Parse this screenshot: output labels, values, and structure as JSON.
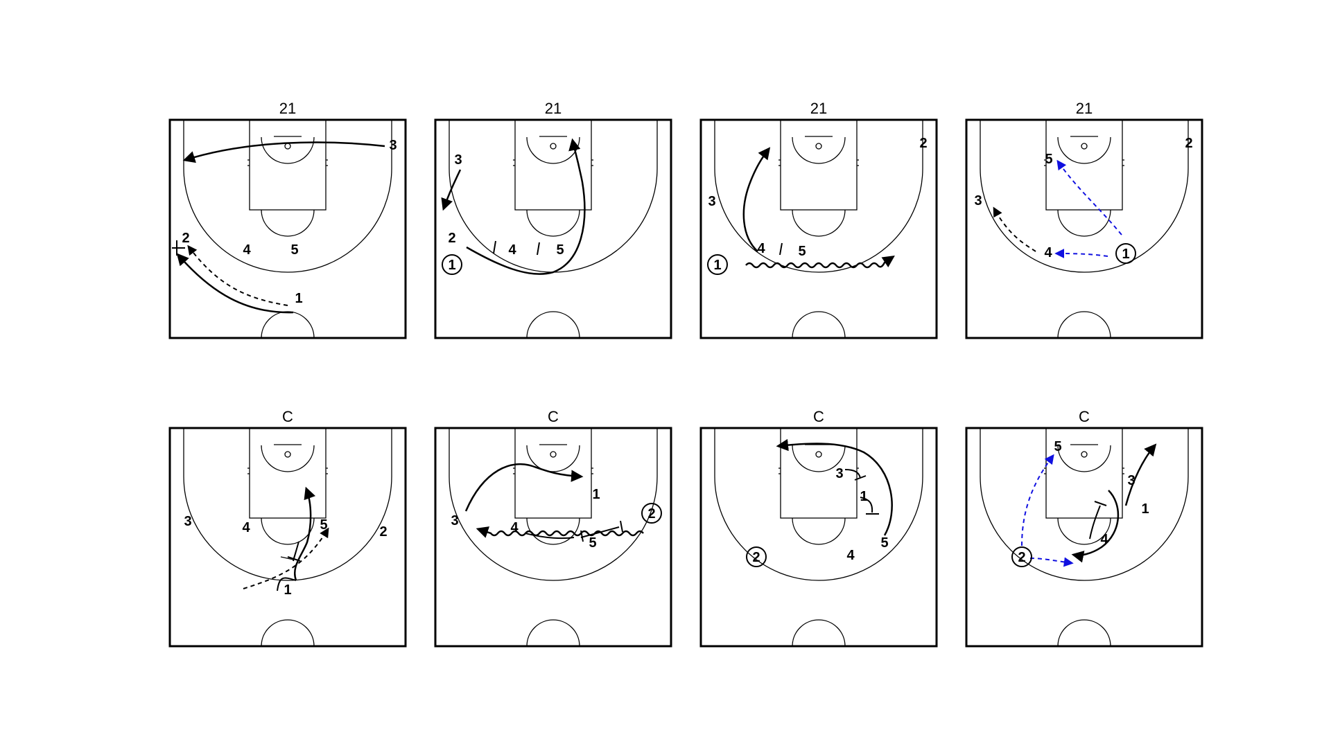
{
  "court_titles": [
    "21",
    "21",
    "21",
    "21",
    "C",
    "C",
    "C",
    "C"
  ],
  "players": {
    "d1": [
      "3",
      "2",
      "4",
      "5",
      "1"
    ],
    "d2": [
      "3",
      "2",
      "1",
      "4",
      "5"
    ],
    "d3": [
      "2",
      "3",
      "1",
      "4",
      "5"
    ],
    "d4": [
      "2",
      "5",
      "3",
      "4",
      "1"
    ],
    "d5": [
      "3",
      "4",
      "5",
      "2",
      "1"
    ],
    "d6": [
      "1",
      "3",
      "4",
      "5",
      "2"
    ],
    "d7": [
      "3",
      "1",
      "5",
      "4",
      "2"
    ],
    "d8": [
      "5",
      "3",
      "1",
      "4",
      "2"
    ]
  },
  "colors": {
    "lines": "#000000",
    "pass_blue": "#1010e0",
    "background": "#ffffff"
  }
}
